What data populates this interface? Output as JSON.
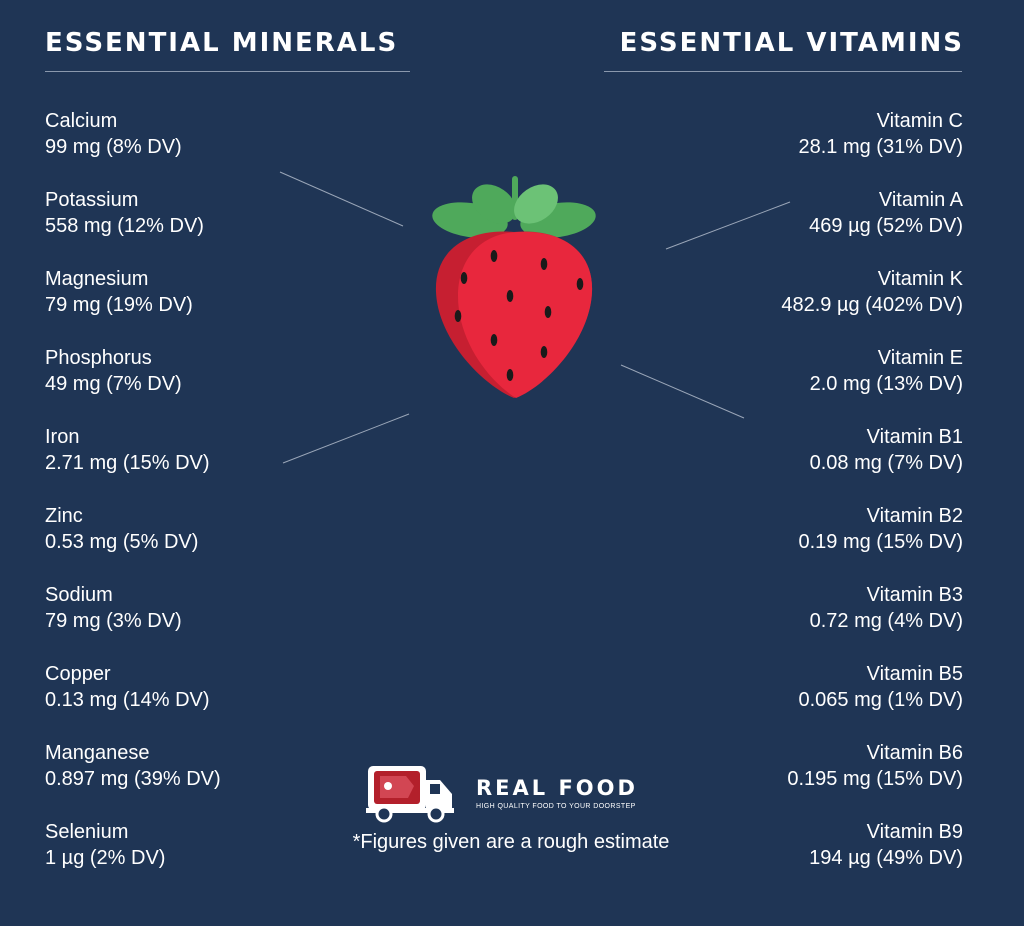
{
  "headings": {
    "minerals": "ESSENTIAL MINERALS",
    "vitamins": "ESSENTIAL VITAMINS"
  },
  "minerals": [
    {
      "name": "Calcium",
      "amount": "99 mg (8% DV)"
    },
    {
      "name": "Potassium",
      "amount": "558 mg (12% DV)"
    },
    {
      "name": "Magnesium",
      "amount": "79 mg (19% DV)"
    },
    {
      "name": "Phosphorus",
      "amount": "49 mg (7% DV)"
    },
    {
      "name": "Iron",
      "amount": "2.71 mg (15% DV)"
    },
    {
      "name": "Zinc",
      "amount": "0.53 mg (5% DV)"
    },
    {
      "name": "Sodium",
      "amount": "79 mg (3% DV)"
    },
    {
      "name": "Copper",
      "amount": "0.13 mg (14% DV)"
    },
    {
      "name": "Manganese",
      "amount": "0.897 mg (39% DV)"
    },
    {
      "name": "Selenium",
      "amount": "1 µg (2% DV)"
    }
  ],
  "vitamins": [
    {
      "name": "Vitamin C",
      "amount": "28.1 mg (31% DV)"
    },
    {
      "name": "Vitamin A",
      "amount": "469 µg (52% DV)"
    },
    {
      "name": "Vitamin K",
      "amount": "482.9 µg (402% DV)"
    },
    {
      "name": "Vitamin E",
      "amount": "2.0 mg (13% DV)"
    },
    {
      "name": "Vitamin B1",
      "amount": "0.08 mg (7% DV)"
    },
    {
      "name": "Vitamin B2",
      "amount": "0.19 mg (15% DV)"
    },
    {
      "name": "Vitamin B3",
      "amount": "0.72 mg (4% DV)"
    },
    {
      "name": "Vitamin B5",
      "amount": "0.065 mg (1% DV)"
    },
    {
      "name": "Vitamin B6",
      "amount": "0.195 mg (15% DV)"
    },
    {
      "name": "Vitamin B9",
      "amount": "194 µg (49% DV)"
    }
  ],
  "brand": {
    "name": "REAL FOOD",
    "tagline": "HIGH QUALITY FOOD TO YOUR DOORSTEP",
    "icon": "delivery-truck-icon"
  },
  "footnote": "*Figures given are a rough estimate",
  "colors": {
    "background": "#1f3555",
    "text": "#ffffff",
    "strawberry": "#e8273d",
    "strawberry_shade": "#c61f31",
    "leaf": "#4fa95b",
    "leaf_light": "#6cc276",
    "truck_cargo": "#b3202b"
  }
}
